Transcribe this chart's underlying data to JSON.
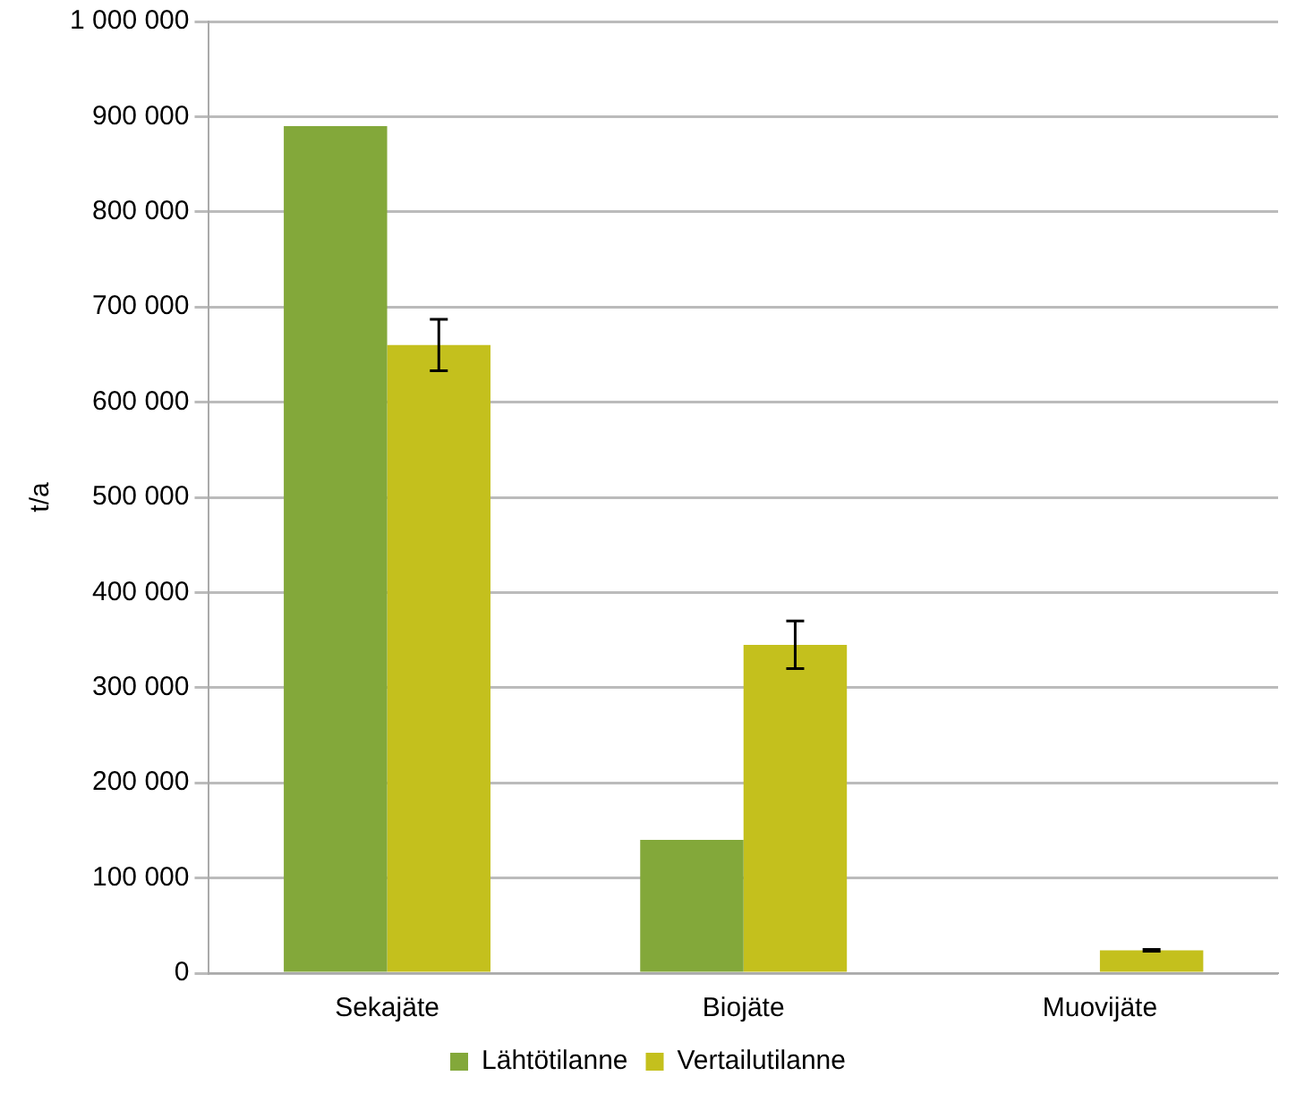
{
  "chart_data": {
    "type": "bar",
    "ylabel": "t/a",
    "categories": [
      "Sekajäte",
      "Biojäte",
      "Muovijäte"
    ],
    "series": [
      {
        "name": "Lähtötilanne",
        "color": "#83a83a",
        "values": [
          890000,
          140000,
          null
        ]
      },
      {
        "name": "Vertailutilanne",
        "color": "#c4c01d",
        "values": [
          660000,
          345000,
          24000
        ],
        "errors": [
          27000,
          25000,
          1000
        ]
      }
    ],
    "ylim": [
      0,
      1000000
    ],
    "yticks": [
      {
        "value": 0,
        "label": "0"
      },
      {
        "value": 100000,
        "label": "100 000"
      },
      {
        "value": 200000,
        "label": "200 000"
      },
      {
        "value": 300000,
        "label": "300 000"
      },
      {
        "value": 400000,
        "label": "400 000"
      },
      {
        "value": 500000,
        "label": "500 000"
      },
      {
        "value": 600000,
        "label": "600 000"
      },
      {
        "value": 700000,
        "label": "700 000"
      },
      {
        "value": 800000,
        "label": "800 000"
      },
      {
        "value": 900000,
        "label": "900 000"
      },
      {
        "value": 1000000,
        "label": "1 000 000"
      }
    ],
    "grid": "y",
    "legend": "bottom"
  }
}
